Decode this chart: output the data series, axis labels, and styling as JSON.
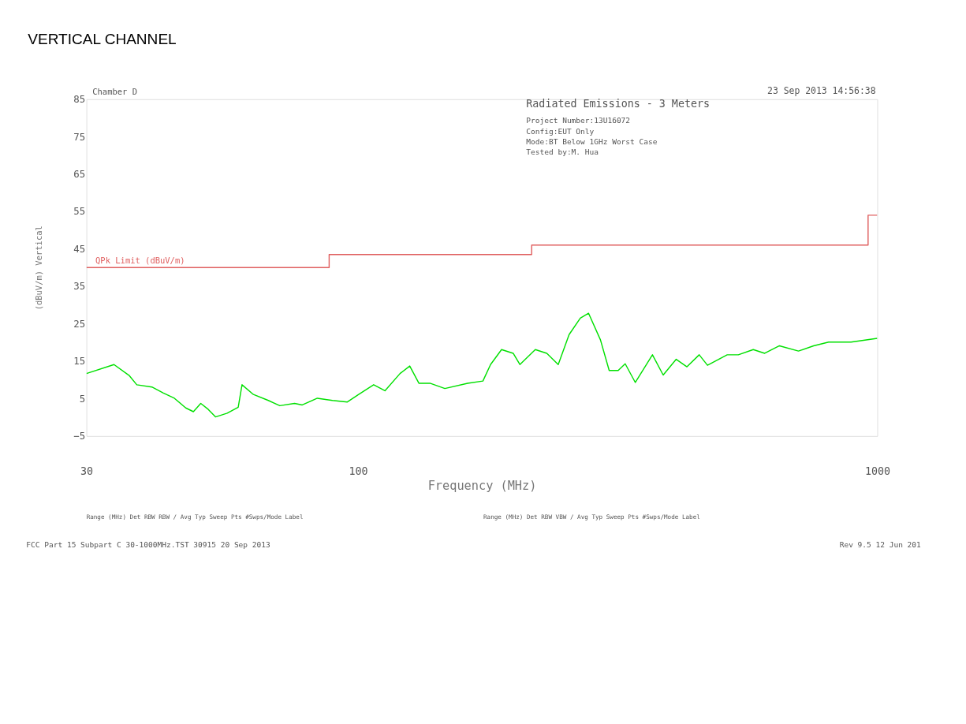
{
  "chart_data": {
    "type": "line",
    "title": "VERTICAL CHANNEL",
    "xlabel": "Frequency (MHz)",
    "ylabel": "(dBuV/m) Vertical",
    "log": "x",
    "xlim": [
      30,
      1000
    ],
    "xticks": [
      30,
      100,
      1000
    ],
    "ylim": [
      -5,
      85
    ],
    "yticks": [
      85,
      75,
      65,
      55,
      45,
      35,
      25,
      15,
      5,
      -5
    ],
    "grid": false,
    "series": [
      {
        "name": "QPk Limit (dBuV/m)",
        "color": "#e06060",
        "x": [
          30,
          88,
          88,
          216,
          216,
          960,
          960,
          1000
        ],
        "values": [
          40,
          40,
          43.5,
          43.5,
          46,
          46,
          54,
          54
        ]
      },
      {
        "color": "#00e000",
        "x": [
          30,
          33.9,
          36.3,
          37.5,
          40.1,
          42.2,
          44.3,
          46.6,
          48.2,
          49.8,
          51.5,
          53.2,
          56.0,
          58.8,
          59.8,
          62.9,
          67.2,
          70.7,
          75.5,
          78.1,
          83.5,
          89.3,
          95.4,
          100.3,
          107.2,
          112.7,
          120.5,
          125.8,
          131,
          137.6,
          147,
          162.6,
          174,
          180,
          189,
          199,
          205,
          219.5,
          231,
          243,
          255,
          268,
          278,
          293,
          304.6,
          317,
          327,
          342,
          369,
          387,
          410,
          430,
          454,
          471,
          514,
          540,
          577,
          607,
          648,
          705,
          754,
          806,
          890,
          1000
        ],
        "values": [
          11.7,
          14.1,
          11.1,
          8.7,
          8.1,
          6.5,
          5.1,
          2.5,
          1.5,
          3.7,
          2.1,
          0.1,
          1.1,
          2.7,
          8.7,
          6.1,
          4.5,
          3.1,
          3.7,
          3.3,
          5.1,
          4.5,
          4.1,
          6.1,
          8.7,
          7.1,
          11.7,
          13.7,
          9.1,
          9.1,
          7.7,
          9.1,
          9.7,
          14.1,
          18.1,
          17.1,
          14.1,
          18.1,
          17.1,
          14.1,
          22.1,
          26.5,
          27.8,
          20.7,
          12.5,
          12.5,
          14.3,
          9.3,
          16.7,
          11.3,
          15.5,
          13.5,
          16.7,
          13.9,
          16.7,
          16.7,
          18.1,
          17.1,
          19.1,
          17.7,
          19.1,
          20.1,
          20.1,
          21.1
        ]
      }
    ],
    "annotations": [
      "Chamber D",
      "23 Sep 2013   14:56:38",
      "Radiated Emissions - 3 Meters",
      "Project Number:13U16072",
      "Config:EUT Only",
      "Mode:BT Below 1GHz Worst Case",
      "Tested by:M. Hua",
      "Range (MHz)   Det   RBW   RBW / Avg Typ   Sweep   Pts   #Swps/Mode   Label",
      "Range (MHz)   Det   RBW   VBW / Avg Typ   Sweep   Pts   #Swps/Mode   Label",
      "FCC Part 15 Subpart C 30-1000MHz.TST 30915 20 Sep 2013",
      "Rev 9.5 12 Jun 201"
    ]
  }
}
